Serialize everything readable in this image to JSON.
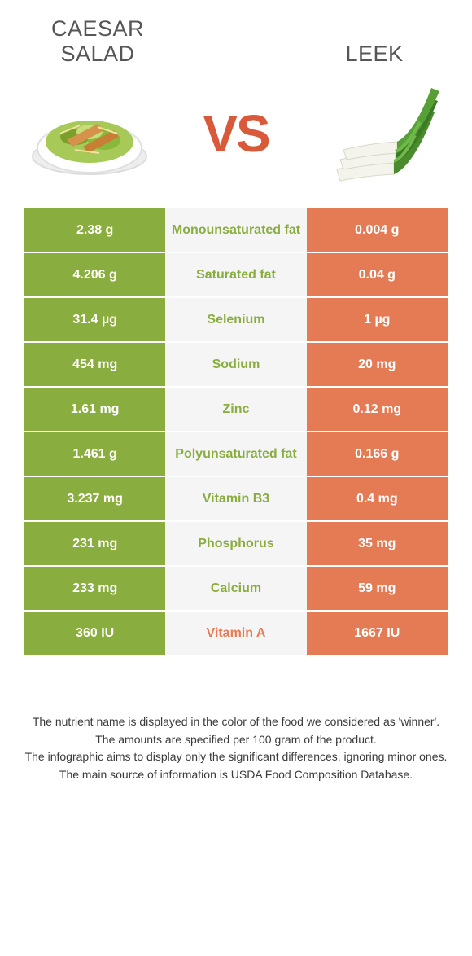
{
  "header": {
    "left_title_line1": "Caesar",
    "left_title_line2": "salad",
    "right_title": "Leek",
    "vs": "VS"
  },
  "colors": {
    "green": "#8aad3f",
    "orange": "#e47b55",
    "mid_bg": "#f5f5f5",
    "text_dark": "#565656",
    "vs_color": "#d85a3a"
  },
  "rows": [
    {
      "left": "2.38 g",
      "label": "Monounsaturated fat",
      "right": "0.004 g",
      "winner": "left"
    },
    {
      "left": "4.206 g",
      "label": "Saturated fat",
      "right": "0.04 g",
      "winner": "left"
    },
    {
      "left": "31.4 µg",
      "label": "Selenium",
      "right": "1 µg",
      "winner": "left"
    },
    {
      "left": "454 mg",
      "label": "Sodium",
      "right": "20 mg",
      "winner": "left"
    },
    {
      "left": "1.61 mg",
      "label": "Zinc",
      "right": "0.12 mg",
      "winner": "left"
    },
    {
      "left": "1.461 g",
      "label": "Polyunsaturated fat",
      "right": "0.166 g",
      "winner": "left"
    },
    {
      "left": "3.237 mg",
      "label": "Vitamin B3",
      "right": "0.4 mg",
      "winner": "left"
    },
    {
      "left": "231 mg",
      "label": "Phosphorus",
      "right": "35 mg",
      "winner": "left"
    },
    {
      "left": "233 mg",
      "label": "Calcium",
      "right": "59 mg",
      "winner": "left"
    },
    {
      "left": "360 IU",
      "label": "Vitamin A",
      "right": "1667 IU",
      "winner": "right"
    }
  ],
  "footer": {
    "line1": "The nutrient name is displayed in the color of the food we considered as 'winner'.",
    "line2": "The amounts are specified per 100 gram of the product.",
    "line3": "The infographic aims to display only the significant differences, ignoring minor ones.",
    "line4": "The main source of information is USDA Food Composition Database."
  }
}
